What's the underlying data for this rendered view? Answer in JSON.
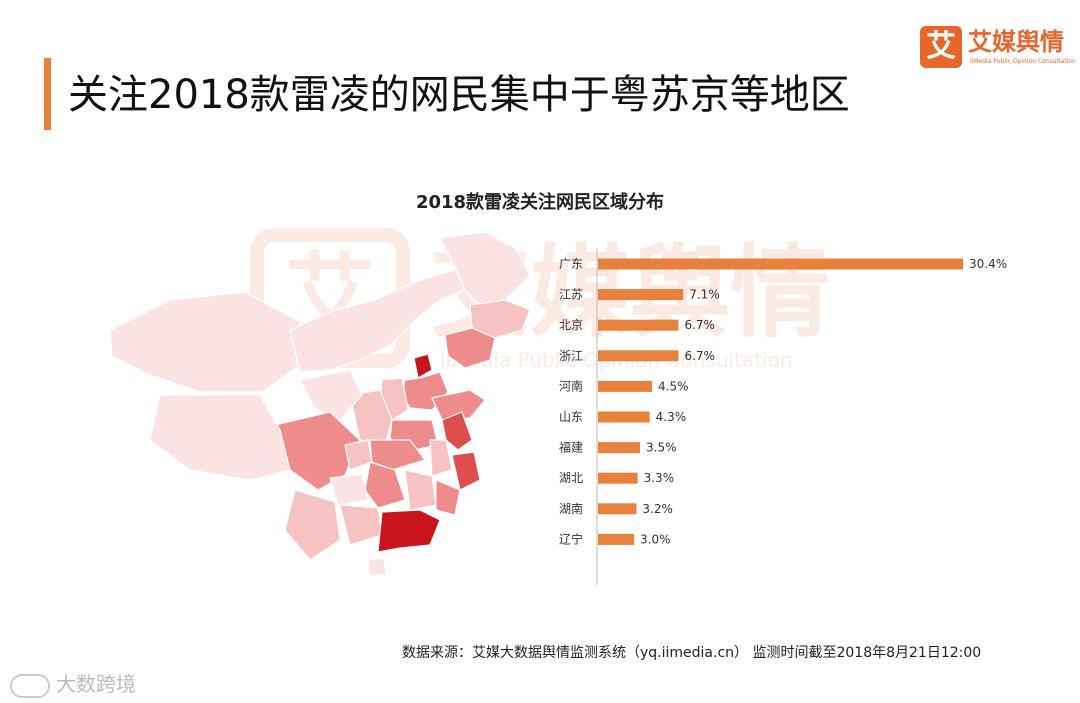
{
  "page": {
    "title": "关注2018款雷凌的网民集中于粤苏京等地区",
    "accent": "#e8803a"
  },
  "logo": {
    "glyph": "艾",
    "name": "艾媒舆情",
    "subtitle": "iiMedia Public Opinion Consultation"
  },
  "watermark": {
    "glyph": "艾",
    "name": "艾媒舆情",
    "subtitle": "iiMedia Public Opinion Consultation"
  },
  "chart_data": {
    "type": "bar",
    "orientation": "horizontal",
    "title": "2018款雷凌关注网民区域分布",
    "categories": [
      "广东",
      "江苏",
      "北京",
      "浙江",
      "河南",
      "山东",
      "福建",
      "湖北",
      "湖南",
      "辽宁"
    ],
    "values": [
      30.4,
      7.1,
      6.7,
      6.7,
      4.5,
      4.3,
      3.5,
      3.3,
      3.2,
      3.0
    ],
    "value_labels": [
      "30.4%",
      "7.1%",
      "6.7%",
      "6.7%",
      "4.5%",
      "4.3%",
      "3.5%",
      "3.3%",
      "3.2%",
      "3.0%"
    ],
    "unit": "%",
    "bar_color": "#e8813b",
    "xlim": [
      0,
      30.4
    ],
    "grid": false,
    "legend": "none"
  },
  "map": {
    "colors": {
      "darkest": "#c8141a",
      "dark": "#de4e4e",
      "medium": "#ee8b8b",
      "light": "#f6c2c2",
      "lightest": "#fbe3e3",
      "outline": "#ffffff"
    }
  },
  "footer": {
    "source": "数据来源：艾媒大数据舆情监测系统（yq.iimedia.cn） 监测时间截至2018年8月21日12:00",
    "corner_text": "大数跨境"
  }
}
